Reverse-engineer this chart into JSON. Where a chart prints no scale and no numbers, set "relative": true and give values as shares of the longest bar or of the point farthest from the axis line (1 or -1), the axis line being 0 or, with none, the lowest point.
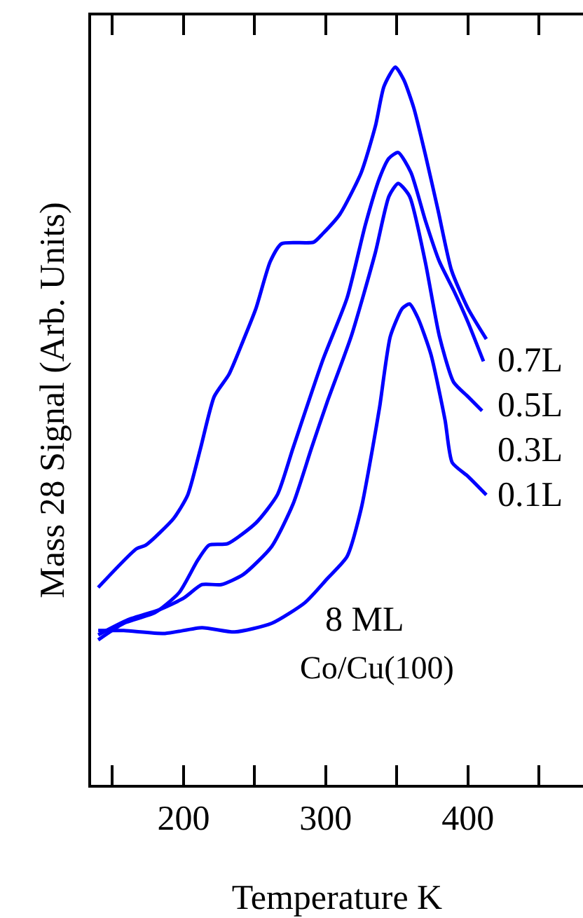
{
  "chart_data": {
    "type": "line",
    "relative": true,
    "xlabel": "Temperature K",
    "ylabel": "Mass 28 Signal (Arb. Units)",
    "xlim": [
      135,
      481
    ],
    "xticks": [
      {
        "value": 150,
        "label": null
      },
      200,
      {
        "value": 250,
        "label": null
      },
      300,
      {
        "value": 350,
        "label": null
      },
      400,
      {
        "value": 450,
        "label": null
      }
    ],
    "tick_labels": "x",
    "legend": false,
    "annotations": [
      "8 ML",
      "Co/Cu(100)"
    ],
    "series": [
      {
        "name": "0.7L",
        "color": "#0000ff",
        "x": [
          140,
          167,
          173.5,
          193,
          203,
          212,
          221.6,
          232,
          242,
          251,
          261,
          269,
          291.5,
          298,
          310,
          325,
          335,
          341,
          349,
          355,
          362,
          370,
          379,
          388.5,
          400,
          413
        ],
        "values": [
          0.275,
          0.329,
          0.334,
          0.371,
          0.404,
          0.469,
          0.541,
          0.572,
          0.619,
          0.664,
          0.729,
          0.754,
          0.756,
          0.768,
          0.795,
          0.853,
          0.918,
          0.973,
          1.0,
          0.982,
          0.943,
          0.879,
          0.801,
          0.717,
          0.664,
          0.621
        ]
      },
      {
        "name": "0.5L",
        "color": "#0000ff",
        "x": [
          140,
          158,
          180,
          197,
          210,
          218,
          231,
          251,
          266,
          277,
          298,
          315,
          328,
          338,
          344.5,
          351,
          360,
          370,
          380,
          390,
          400,
          411
        ],
        "values": [
          0.202,
          0.225,
          0.24,
          0.268,
          0.313,
          0.334,
          0.336,
          0.365,
          0.404,
          0.469,
          0.592,
          0.678,
          0.781,
          0.846,
          0.873,
          0.881,
          0.853,
          0.787,
          0.729,
          0.689,
          0.645,
          0.59
        ]
      },
      {
        "name": "0.3L",
        "color": "#0000ff",
        "x": [
          140,
          161,
          183,
          200,
          213,
          226.5,
          242,
          262,
          277,
          290,
          301,
          318,
          335,
          344.5,
          351,
          359,
          370,
          380,
          390,
          400,
          410
        ],
        "values": [
          0.209,
          0.23,
          0.244,
          0.26,
          0.279,
          0.279,
          0.293,
          0.332,
          0.391,
          0.469,
          0.533,
          0.625,
          0.742,
          0.82,
          0.838,
          0.82,
          0.729,
          0.625,
          0.561,
          0.541,
          0.521
        ]
      },
      {
        "name": "0.1L",
        "color": "#0000ff",
        "x": [
          140,
          158,
          187,
          213,
          236,
          262,
          285.5,
          301,
          315,
          325,
          333,
          338,
          345.5,
          354,
          359,
          365,
          374,
          384,
          389,
          400,
          413
        ],
        "values": [
          0.215,
          0.215,
          0.211,
          0.219,
          0.213,
          0.225,
          0.254,
          0.287,
          0.318,
          0.385,
          0.469,
          0.527,
          0.625,
          0.664,
          0.67,
          0.65,
          0.6,
          0.508,
          0.449,
          0.43,
          0.404
        ]
      }
    ]
  }
}
